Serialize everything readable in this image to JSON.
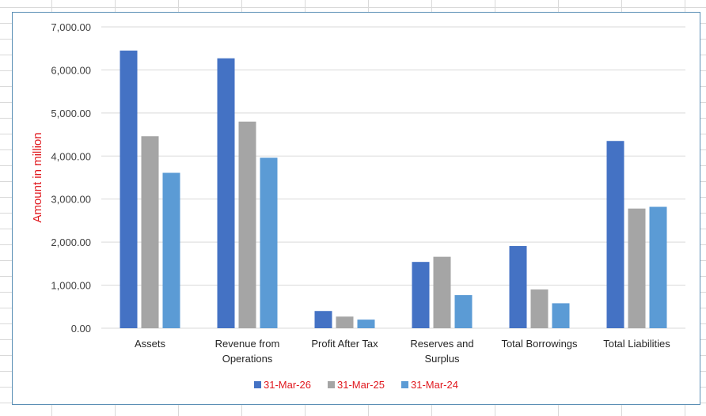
{
  "chart_data": {
    "type": "bar",
    "categories": [
      [
        "Assets"
      ],
      [
        "Revenue from",
        "Operations"
      ],
      [
        "Profit After Tax"
      ],
      [
        "Reserves and",
        "Surplus"
      ],
      [
        "Total Borrowings"
      ],
      [
        "Total Liabilities"
      ]
    ],
    "series": [
      {
        "name": "31-Mar-26",
        "color": "#4472c4",
        "values": [
          6450,
          6270,
          400,
          1540,
          1910,
          4350
        ]
      },
      {
        "name": "31-Mar-25",
        "color": "#a5a5a5",
        "values": [
          4460,
          4800,
          270,
          1660,
          900,
          2780
        ]
      },
      {
        "name": "31-Mar-24",
        "color": "#5b9bd5",
        "values": [
          3610,
          3960,
          200,
          770,
          580,
          2820
        ]
      }
    ],
    "title": "",
    "xlabel": "",
    "ylabel": "Amount in million",
    "ylim": [
      0,
      7000
    ],
    "yticks": [
      "0.00",
      "1,000.00",
      "2,000.00",
      "3,000.00",
      "4,000.00",
      "5,000.00",
      "6,000.00",
      "7,000.00"
    ],
    "grid": true,
    "legend_position": "bottom"
  }
}
